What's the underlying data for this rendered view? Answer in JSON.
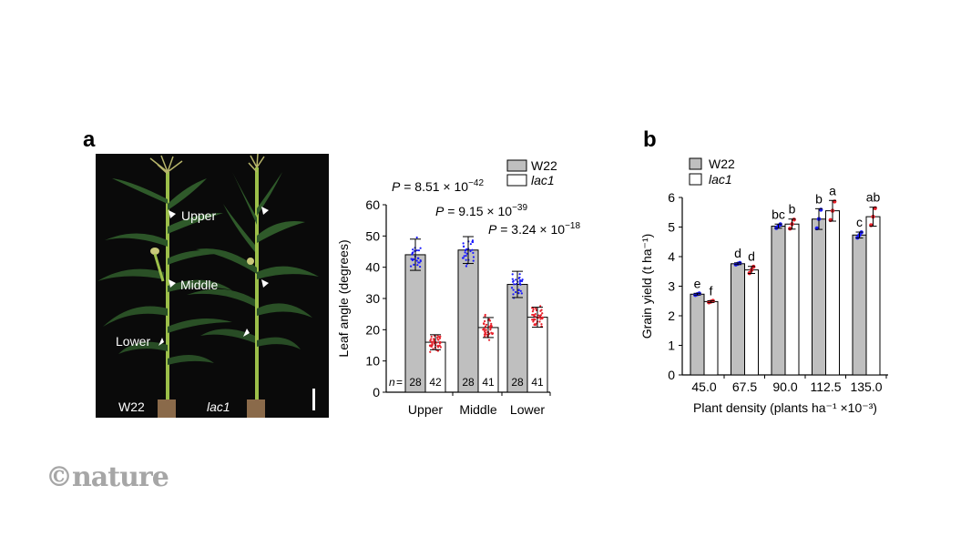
{
  "panels": {
    "a_label": "a",
    "b_label": "b"
  },
  "photo": {
    "arrow_labels": [
      "Upper",
      "Middle",
      "Lower"
    ],
    "genotype_left": "W22",
    "genotype_right": "lac1",
    "background": "#0a0a0a"
  },
  "logo": {
    "text": "©nature",
    "color": "#a6a6a6"
  },
  "colors": {
    "w22_bar": "#bfbfbf",
    "lac1_bar": "#ffffff",
    "w22_points": "#1a1aff",
    "lac1_points": "#e8202a"
  },
  "chart_data": [
    {
      "type": "bar",
      "title": "",
      "xlabel": "",
      "ylabel": "Leaf angle (degrees)",
      "ylim": [
        0,
        60
      ],
      "yticks": [
        0,
        10,
        20,
        30,
        40,
        50,
        60
      ],
      "categories": [
        "Upper",
        "Middle",
        "Lower"
      ],
      "legend": [
        "W22",
        "lac1"
      ],
      "legend_position": "top-right",
      "series": [
        {
          "name": "W22",
          "values": [
            44.0,
            45.5,
            34.5
          ],
          "sd": [
            5.0,
            4.3,
            4.2
          ],
          "n": [
            28,
            28,
            28
          ]
        },
        {
          "name": "lac1",
          "values": [
            16.0,
            20.7,
            24.0
          ],
          "sd": [
            2.4,
            3.2,
            3.2
          ],
          "n": [
            42,
            41,
            41
          ]
        }
      ],
      "n_label": "n =",
      "annotations": [
        {
          "text_prefix": "P = 8.51 × 10",
          "exponent": "−42",
          "category": "Upper"
        },
        {
          "text_prefix": "P = 9.15 × 10",
          "exponent": "−39",
          "category": "Middle"
        },
        {
          "text_prefix": "P = 3.24 × 10",
          "exponent": "−18",
          "category": "Lower"
        }
      ],
      "grid": false
    },
    {
      "type": "bar",
      "title": "",
      "xlabel": "Plant density (plants ha⁻¹ ×10⁻³)",
      "ylabel": "Grain yield (t ha⁻¹)",
      "ylim": [
        0,
        6
      ],
      "yticks": [
        0,
        1,
        2,
        3,
        4,
        5,
        6
      ],
      "categories": [
        "45.0",
        "67.5",
        "90.0",
        "112.5",
        "135.0"
      ],
      "legend": [
        "W22",
        "lac1"
      ],
      "legend_position": "top-left",
      "series": [
        {
          "name": "W22",
          "values": [
            2.73,
            3.76,
            5.03,
            5.27,
            4.73
          ],
          "sd": [
            0.03,
            0.03,
            0.07,
            0.35,
            0.1
          ],
          "letters": [
            "e",
            "d",
            "bc",
            "b",
            "c"
          ]
        },
        {
          "name": "lac1",
          "values": [
            2.48,
            3.55,
            5.1,
            5.55,
            5.35
          ],
          "sd": [
            0.03,
            0.12,
            0.17,
            0.35,
            0.32
          ],
          "letters": [
            "f",
            "d",
            "b",
            "a",
            "ab"
          ]
        }
      ],
      "grid": false
    }
  ]
}
